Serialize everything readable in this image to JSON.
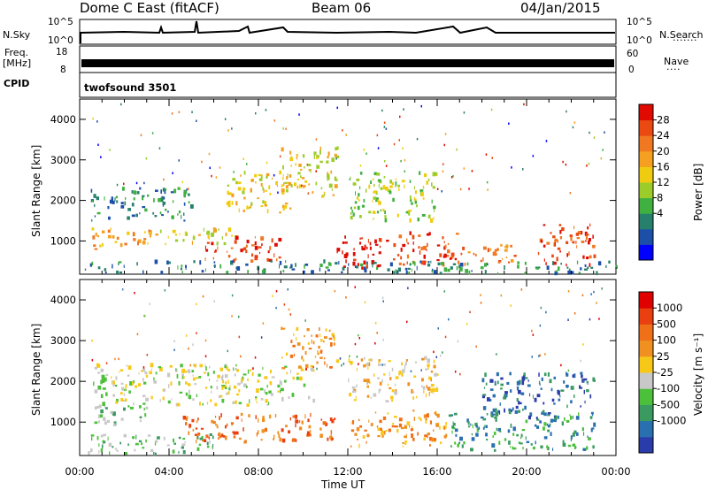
{
  "header": {
    "radar_title": "Dome C East (fitACF)",
    "beam": "Beam 06",
    "date": "04/Jan/2015"
  },
  "strips": {
    "nsky_label": "N.Sky",
    "nsky_ticks": [
      "10^5",
      "10^0"
    ],
    "nsearch_label": "N.Search",
    "nsearch_ticks": [
      "10^5",
      "10^0"
    ],
    "freq_label": "Freq.",
    "freq_unit": "[MHz]",
    "freq_ticks": [
      "18",
      "8"
    ],
    "nave_label": "Nave",
    "nave_ticks": [
      "60",
      "0"
    ],
    "cpid_label": "CPID",
    "cpid_value": "twofsound 3501"
  },
  "chart_data": [
    {
      "type": "heatmap",
      "name": "power",
      "xlabel": "",
      "ylabel": "Slant Range [km]",
      "xlim": [
        0,
        24
      ],
      "ylim": [
        180,
        4500
      ],
      "yticks": [
        "1000",
        "2000",
        "3000",
        "4000"
      ],
      "colorbar_title": "Power [dB]",
      "colorbar_ticks": [
        "28",
        "24",
        "20",
        "16",
        "12",
        "8",
        "4"
      ],
      "colorbar_colors": [
        "#0000ff",
        "#1c4fa8",
        "#27806c",
        "#40b040",
        "#9ccc2a",
        "#f0cc10",
        "#f5a020",
        "#f07820",
        "#ea4a12",
        "#e00a00"
      ],
      "regions": [
        {
          "t": [
            0.5,
            5.0
          ],
          "r": [
            1500,
            2300
          ],
          "level": 2
        },
        {
          "t": [
            0.5,
            3.5
          ],
          "r": [
            800,
            1300
          ],
          "level": 6
        },
        {
          "t": [
            3.5,
            7.0
          ],
          "r": [
            900,
            1300
          ],
          "level": 5
        },
        {
          "t": [
            5.5,
            9.0
          ],
          "r": [
            500,
            1100
          ],
          "level": 8
        },
        {
          "t": [
            6.5,
            9.5
          ],
          "r": [
            1700,
            2700
          ],
          "level": 5
        },
        {
          "t": [
            9.0,
            11.5
          ],
          "r": [
            2100,
            3300
          ],
          "level": 5
        },
        {
          "t": [
            11.5,
            13.8
          ],
          "r": [
            300,
            1100
          ],
          "level": 9
        },
        {
          "t": [
            14.0,
            17.0
          ],
          "r": [
            400,
            1200
          ],
          "level": 8
        },
        {
          "t": [
            17.0,
            19.5
          ],
          "r": [
            400,
            900
          ],
          "level": 7
        },
        {
          "t": [
            20.5,
            23.0
          ],
          "r": [
            400,
            1400
          ],
          "level": 8
        },
        {
          "t": [
            12.0,
            16.0
          ],
          "r": [
            1500,
            2700
          ],
          "level": 4
        },
        {
          "t": [
            0.2,
            24.0
          ],
          "r": [
            200,
            500
          ],
          "level": 2
        }
      ]
    },
    {
      "type": "heatmap",
      "name": "velocity",
      "xlabel": "Time UT",
      "ylabel": "Slant Range [km]",
      "xlim": [
        0,
        24
      ],
      "ylim": [
        180,
        4500
      ],
      "xticks": [
        "00:00",
        "04:00",
        "08:00",
        "12:00",
        "16:00",
        "20:00",
        "00:00"
      ],
      "yticks": [
        "1000",
        "2000",
        "3000",
        "4000"
      ],
      "colorbar_title": "Velocity [m s⁻¹]",
      "colorbar_ticks": [
        "1000",
        "500",
        "100",
        "25",
        "-25",
        "-100",
        "-500",
        "-1000"
      ],
      "colorbar_colors": [
        "#2a3caa",
        "#2a70b0",
        "#3a9a60",
        "#4cc03a",
        "#c8c8c8",
        "#f8c818",
        "#f09020",
        "#f07018",
        "#ea4010",
        "#e00000"
      ],
      "regions": [
        {
          "t": [
            0.5,
            10.5
          ],
          "r": [
            1400,
            2400
          ],
          "level": 4
        },
        {
          "t": [
            0.5,
            3.0
          ],
          "r": [
            900,
            1400
          ],
          "level": 3
        },
        {
          "t": [
            4.5,
            11.5
          ],
          "r": [
            500,
            1200
          ],
          "level": 7
        },
        {
          "t": [
            9.0,
            11.5
          ],
          "r": [
            2300,
            3300
          ],
          "level": 6
        },
        {
          "t": [
            12.0,
            16.5
          ],
          "r": [
            400,
            1300
          ],
          "level": 6
        },
        {
          "t": [
            16.5,
            23.0
          ],
          "r": [
            300,
            1200
          ],
          "level": 2
        },
        {
          "t": [
            18.0,
            23.0
          ],
          "r": [
            1100,
            2200
          ],
          "level": 1
        },
        {
          "t": [
            0.2,
            6.0
          ],
          "r": [
            200,
            700
          ],
          "level": 3
        },
        {
          "t": [
            12.0,
            16.0
          ],
          "r": [
            1500,
            2600
          ],
          "level": 5
        }
      ]
    }
  ]
}
